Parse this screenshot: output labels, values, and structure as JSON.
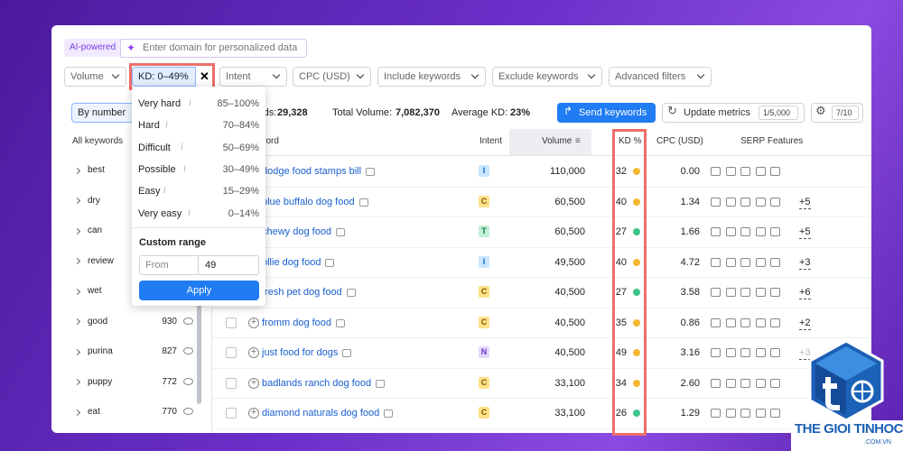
{
  "ai_bar": {
    "badge": "AI-powered",
    "placeholder": "Enter domain for personalized data"
  },
  "filters": [
    "Volume",
    "KD: 0–49%",
    "Intent",
    "CPC (USD)",
    "Include keywords",
    "Exclude keywords",
    "Advanced filters"
  ],
  "summary": {
    "view": "By number",
    "keywords_label": "Keywords:",
    "keywords": "29,328",
    "volume_label": "Total Volume:",
    "volume": "7,082,370",
    "kd_label": "Average KD:",
    "kd": "23%",
    "send": "Send keywords",
    "update": "Update metrics",
    "update_count": "1/5,000",
    "settings_count": "7/10"
  },
  "sidebar": {
    "title": "All keywords",
    "items": [
      {
        "label": "best"
      },
      {
        "label": "dry"
      },
      {
        "label": "can"
      },
      {
        "label": "review"
      },
      {
        "label": "wet"
      },
      {
        "label": "good",
        "count": "930"
      },
      {
        "label": "purina",
        "count": "827"
      },
      {
        "label": "puppy",
        "count": "772"
      },
      {
        "label": "eat",
        "count": "770"
      }
    ]
  },
  "table": {
    "headers": [
      "Keyword",
      "Intent",
      "Volume",
      "KD %",
      "CPC (USD)",
      "SERP Features"
    ],
    "rows": [
      {
        "keyword": "dodge food stamps bill",
        "intent": "I",
        "volume": "110,000",
        "kd": "32",
        "kd_color": "#f5b731",
        "cpc": "0.00"
      },
      {
        "keyword": "blue buffalo dog food",
        "intent": "C",
        "volume": "60,500",
        "kd": "40",
        "kd_color": "#f5b731",
        "cpc": "1.34",
        "serp_more": "+5"
      },
      {
        "keyword": "chewy dog food",
        "intent": "T",
        "volume": "60,500",
        "kd": "27",
        "kd_color": "#3dc48a",
        "cpc": "1.66",
        "serp_more": "+5"
      },
      {
        "keyword": "ollie dog food",
        "intent": "I",
        "volume": "49,500",
        "kd": "40",
        "kd_color": "#f5b731",
        "cpc": "4.72",
        "serp_more": "+3"
      },
      {
        "keyword": "fresh pet dog food",
        "intent": "C",
        "volume": "40,500",
        "kd": "27",
        "kd_color": "#3dc48a",
        "cpc": "3.58",
        "serp_more": "+6"
      },
      {
        "keyword": "fromm dog food",
        "intent": "C",
        "volume": "40,500",
        "kd": "35",
        "kd_color": "#f5b731",
        "cpc": "0.86",
        "serp_more": "+2"
      },
      {
        "keyword": "just food for dogs",
        "intent": "N",
        "volume": "40,500",
        "kd": "49",
        "kd_color": "#f5b731",
        "cpc": "3.16",
        "serp_more": "+3"
      },
      {
        "keyword": "badlands ranch dog food",
        "intent": "C",
        "volume": "33,100",
        "kd": "34",
        "kd_color": "#f5b731",
        "cpc": "2.60"
      },
      {
        "keyword": "diamond naturals dog food",
        "intent": "C",
        "volume": "33,100",
        "kd": "26",
        "kd_color": "#3dc48a",
        "cpc": "1.29"
      }
    ]
  },
  "kd_dropdown": {
    "options": [
      {
        "label": "Very hard",
        "range": "85–100%"
      },
      {
        "label": "Hard",
        "range": "70–84%"
      },
      {
        "label": "Difficult",
        "range": "50–69%"
      },
      {
        "label": "Possible",
        "range": "30–49%"
      },
      {
        "label": "Easy",
        "range": "15–29%"
      },
      {
        "label": "Very easy",
        "range": "0–14%"
      }
    ],
    "custom_title": "Custom range",
    "from_placeholder": "From",
    "to": "49",
    "apply": "Apply"
  },
  "logo": {
    "name": "THE GIOI TINHOC",
    "domain": ".COM.VN"
  }
}
